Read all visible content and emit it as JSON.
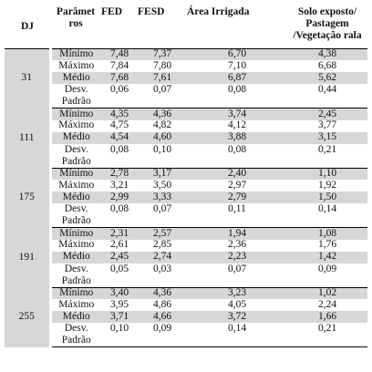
{
  "table": {
    "headers": {
      "dj": "DJ",
      "param": "Parâmet ros",
      "fed": "FED",
      "fesd": "FESD",
      "area": "Área Irrigada",
      "solo": "Solo exposto/ Pastagem /Vegetação rala"
    },
    "groups": [
      {
        "dj": "31",
        "rows": [
          {
            "stat": "Mínimo",
            "fed": "7,48",
            "fesd": "7,37",
            "area": "6,70",
            "solo": "4,38"
          },
          {
            "stat": "Máximo",
            "fed": "7,84",
            "fesd": "7,80",
            "area": "7,10",
            "solo": "6,68"
          },
          {
            "stat": "Médio",
            "fed": "7,68",
            "fesd": "7,61",
            "area": "6,87",
            "solo": "5,62"
          },
          {
            "stat": "Desv. Padrão",
            "fed": "0,06",
            "fesd": "0,07",
            "area": "0,08",
            "solo": "0,44"
          }
        ]
      },
      {
        "dj": "111",
        "rows": [
          {
            "stat": "Mínimo",
            "fed": "4,35",
            "fesd": "4,36",
            "area": "3,74",
            "solo": "2,45"
          },
          {
            "stat": "Máximo",
            "fed": "4,75",
            "fesd": "4,82",
            "area": "4,12",
            "solo": "3,77"
          },
          {
            "stat": "Médio",
            "fed": "4,54",
            "fesd": "4,60",
            "area": "3,88",
            "solo": "3,15"
          },
          {
            "stat": "Desv. Padrão",
            "fed": "0,08",
            "fesd": "0,10",
            "area": "0,08",
            "solo": "0,21"
          }
        ]
      },
      {
        "dj": "175",
        "rows": [
          {
            "stat": "Mínimo",
            "fed": "2,78",
            "fesd": "3,17",
            "area": "2,40",
            "solo": "1,10"
          },
          {
            "stat": "Máximo",
            "fed": "3,21",
            "fesd": "3,50",
            "area": "2,97",
            "solo": "1,92"
          },
          {
            "stat": "Médio",
            "fed": "2,99",
            "fesd": "3,33",
            "area": "2,79",
            "solo": "1,50"
          },
          {
            "stat": "Desv. Padrão",
            "fed": "0,08",
            "fesd": "0,07",
            "area": "0,11",
            "solo": "0,14"
          }
        ]
      },
      {
        "dj": "191",
        "rows": [
          {
            "stat": "Mínimo",
            "fed": "2,31",
            "fesd": "2,57",
            "area": "1,94",
            "solo": "1,08"
          },
          {
            "stat": "Máximo",
            "fed": "2,61",
            "fesd": "2,85",
            "area": "2,36",
            "solo": "1,76"
          },
          {
            "stat": "Médio",
            "fed": "2,45",
            "fesd": "2,74",
            "area": "2,23",
            "solo": "1,42"
          },
          {
            "stat": "Desv. Padrão",
            "fed": "0,05",
            "fesd": "0,03",
            "area": "0,07",
            "solo": "0,09"
          }
        ]
      },
      {
        "dj": "255",
        "rows": [
          {
            "stat": "Mínimo",
            "fed": "3,40",
            "fesd": "4,36",
            "area": "3,23",
            "solo": "1,02"
          },
          {
            "stat": "Máximo",
            "fed": "3,95",
            "fesd": "4,86",
            "area": "4,05",
            "solo": "2,24"
          },
          {
            "stat": "Médio",
            "fed": "3,71",
            "fesd": "4,66",
            "area": "3,72",
            "solo": "1,66"
          },
          {
            "stat": "Desv. Padrão",
            "fed": "0,10",
            "fesd": "0,09",
            "area": "0,14",
            "solo": "0,21"
          }
        ]
      }
    ],
    "colors": {
      "shade": "#d7d7d7",
      "text": "#111111",
      "rule": "#000000"
    }
  }
}
